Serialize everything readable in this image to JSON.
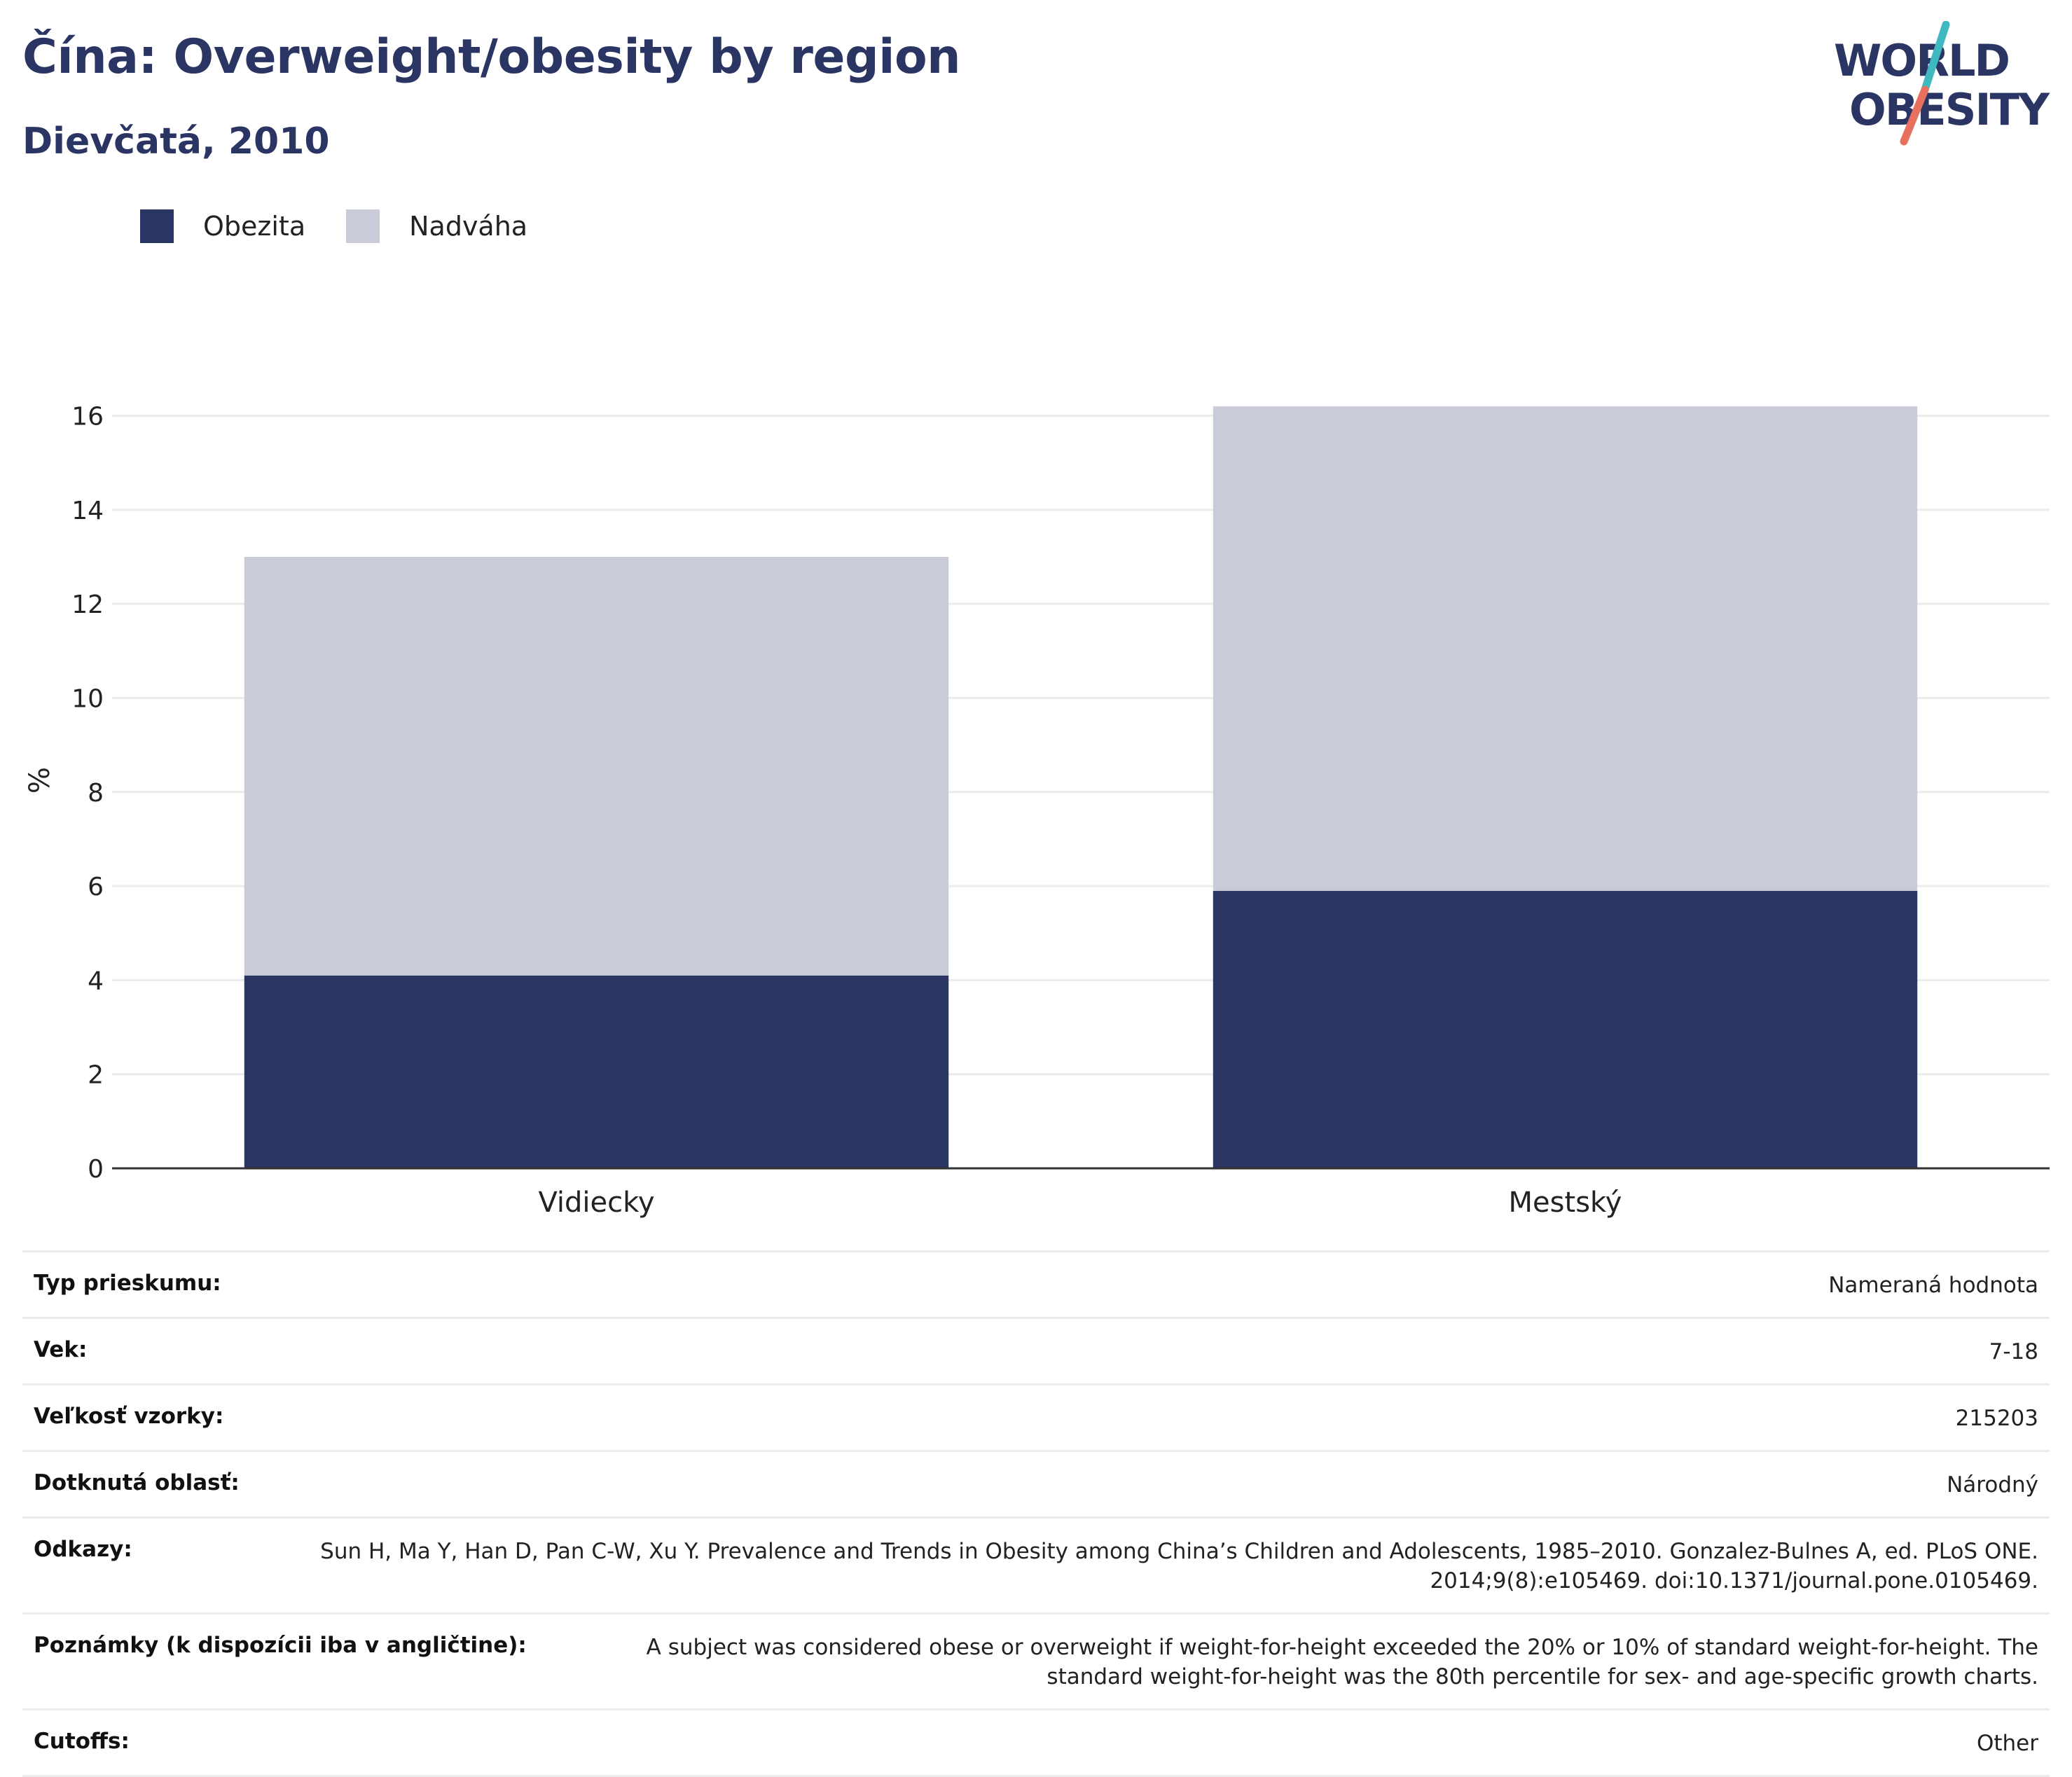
{
  "header": {
    "title": "Čína: Overweight/obesity by region",
    "subtitle": "Dievčatá, 2010"
  },
  "logo": {
    "line1": "WORLD",
    "line2": "OBESITY",
    "colors": {
      "text": "#2b3563",
      "slash_top": "#3fb8c0",
      "slash_bottom": "#e8705f"
    }
  },
  "colors": {
    "obesity": "#2b3563",
    "overweight": "#c9ccd8",
    "grid": "#ececec",
    "axis": "#333333"
  },
  "chart_data": {
    "type": "bar",
    "stacked": true,
    "categories": [
      "Vidiecky",
      "Mestský"
    ],
    "series": [
      {
        "name": "Obezita",
        "values": [
          4.1,
          5.9
        ]
      },
      {
        "name": "Nadváha",
        "values": [
          8.9,
          10.3
        ]
      }
    ],
    "ylabel": "%",
    "ylim": [
      0,
      16.5
    ],
    "yticks": [
      0,
      2,
      4,
      6,
      8,
      10,
      12,
      14,
      16
    ],
    "grid": true,
    "legend_position": "top-left"
  },
  "info_table": [
    {
      "label": "Typ prieskumu:",
      "value": "Nameraná hodnota"
    },
    {
      "label": "Vek:",
      "value": "7-18"
    },
    {
      "label": "Veľkosť vzorky:",
      "value": "215203"
    },
    {
      "label": "Dotknutá oblasť:",
      "value": "Národný"
    },
    {
      "label": "Odkazy:",
      "value": "Sun H, Ma Y, Han D, Pan C-W, Xu Y. Prevalence and Trends in Obesity among China’s Children and Adolescents, 1985–2010. Gonzalez-Bulnes A, ed. PLoS ONE. 2014;9(8):e105469. doi:10.1371/journal.pone.0105469."
    },
    {
      "label": "Poznámky (k dispozícii iba v angličtine):",
      "value": "A subject was considered obese or overweight if weight-for-height exceeded the 20% or 10% of standard weight-for-height. The standard weight-for-height was the 80th percentile for sex- and age-specific growth charts."
    },
    {
      "label": "Cutoffs:",
      "value": "Other"
    }
  ]
}
